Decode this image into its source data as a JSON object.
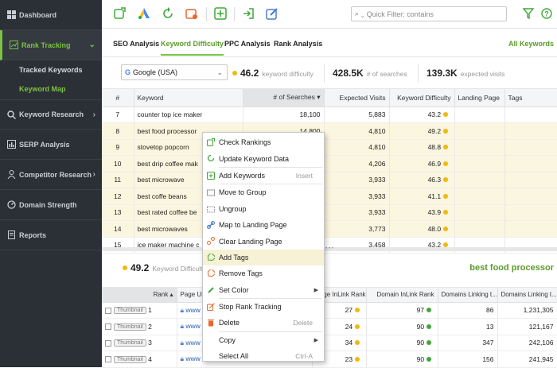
{
  "sidebar": {
    "items": [
      {
        "label": "Dashboard",
        "icon": "dashboard-icon"
      },
      {
        "label": "Rank Tracking",
        "icon": "rank-tracking-icon"
      },
      {
        "label": "Keyword Research",
        "icon": "search-icon"
      },
      {
        "label": "SERP Analysis",
        "icon": "chart-icon"
      },
      {
        "label": "Competitor Research",
        "icon": "competitors-icon"
      },
      {
        "label": "Domain Strength",
        "icon": "gauge-icon"
      },
      {
        "label": "Reports",
        "icon": "reports-icon"
      }
    ],
    "subitems": [
      {
        "label": "Tracked Keywords"
      },
      {
        "label": "Keyword Map"
      }
    ]
  },
  "toolbar": {
    "filter_placeholder": "Quick Filter: contains"
  },
  "tabs": {
    "items": [
      "SEO Analysis",
      "Keyword Difficulty",
      "PPC Analysis",
      "Rank Analysis"
    ],
    "right_link": "All Keywords"
  },
  "stats": {
    "engine": "Google (USA)",
    "difficulty_value": "46.2",
    "difficulty_label": "keyword difficulty",
    "searches_value": "428.5K",
    "searches_label": "# of searches",
    "visits_value": "139.3K",
    "visits_label": "expected visits"
  },
  "grid": {
    "columns": [
      "#",
      "Keyword",
      "# of Searches",
      "Expected Visits",
      "Keyword Difficulty",
      "Landing Page",
      "Tags"
    ],
    "rows": [
      {
        "n": "7",
        "kw": "counter top ice maker",
        "s": "18,100",
        "v": "5,883",
        "d": "43.2"
      },
      {
        "n": "8",
        "kw": "best food processor",
        "s": "14,800",
        "v": "4,810",
        "d": "49.2"
      },
      {
        "n": "9",
        "kw": "stovetop popcorn",
        "s": "",
        "v": "4,810",
        "d": "48.8"
      },
      {
        "n": "10",
        "kw": "best drip coffee mak",
        "s": "",
        "v": "4,206",
        "d": "46.9"
      },
      {
        "n": "11",
        "kw": "best microwave",
        "s": "",
        "v": "3,933",
        "d": "46.3"
      },
      {
        "n": "12",
        "kw": "best coffe beans",
        "s": "",
        "v": "3,933",
        "d": "41.1"
      },
      {
        "n": "13",
        "kw": "best rated coffee be",
        "s": "",
        "v": "3,933",
        "d": "43.9"
      },
      {
        "n": "14",
        "kw": "best microwaves",
        "s": "",
        "v": "3,773",
        "d": "48.0"
      },
      {
        "n": "15",
        "kw": "ice maker machine c",
        "s": "",
        "v": "3,458",
        "d": "43.2"
      }
    ]
  },
  "detail": {
    "value": "49.2",
    "label": "Keyword Difficulty",
    "keyword": "best food processor"
  },
  "grid2": {
    "columns": [
      "Rank",
      "Page URL",
      "Page InLink Rank",
      "Domain InLink Rank",
      "Domains Linking t...",
      "Domains Linking t..."
    ],
    "thumb_label": "Thumbnail",
    "url_text": "www",
    "rows": [
      {
        "rank": "1",
        "pil": "27",
        "dil": "97",
        "d1": "86",
        "d2": "1,231,305"
      },
      {
        "rank": "2",
        "pil": "24",
        "dil": "90",
        "d1": "13",
        "d2": "121,167"
      },
      {
        "rank": "3",
        "pil": "34",
        "dil": "90",
        "d1": "347",
        "d2": "242,106"
      },
      {
        "rank": "4",
        "pil": "23",
        "dil": "90",
        "d1": "156",
        "d2": "241,945"
      }
    ]
  },
  "menu": {
    "items": [
      {
        "label": "Check Rankings",
        "icon": "check-rankings-icon"
      },
      {
        "label": "Update Keyword Data",
        "icon": "update-icon"
      },
      {
        "label": "Add Keywords",
        "icon": "add-icon",
        "shortcut": "Insert"
      },
      {
        "label": "Move to Group",
        "icon": "move-icon"
      },
      {
        "label": "Ungroup",
        "icon": "ungroup-icon"
      },
      {
        "label": "Map to Landing Page",
        "icon": "map-icon"
      },
      {
        "label": "Clear Landing Page",
        "icon": "clear-icon"
      },
      {
        "label": "Add Tags",
        "icon": "tag-icon"
      },
      {
        "label": "Remove Tags",
        "icon": "remove-tag-icon"
      },
      {
        "label": "Set Color",
        "icon": "color-icon"
      },
      {
        "label": "Stop Rank Tracking",
        "icon": "stop-icon"
      },
      {
        "label": "Delete",
        "icon": "delete-icon",
        "shortcut": "Delete"
      },
      {
        "label": "Copy",
        "icon": ""
      },
      {
        "label": "Select All",
        "icon": "",
        "shortcut": "Ctrl-A"
      }
    ]
  },
  "colors": {
    "accent": "#7dc242",
    "sidebar": "#2b3036",
    "highlight": "#fbf6df",
    "yellow_dot": "#f1b90c",
    "green_dot": "#3fa83a"
  }
}
